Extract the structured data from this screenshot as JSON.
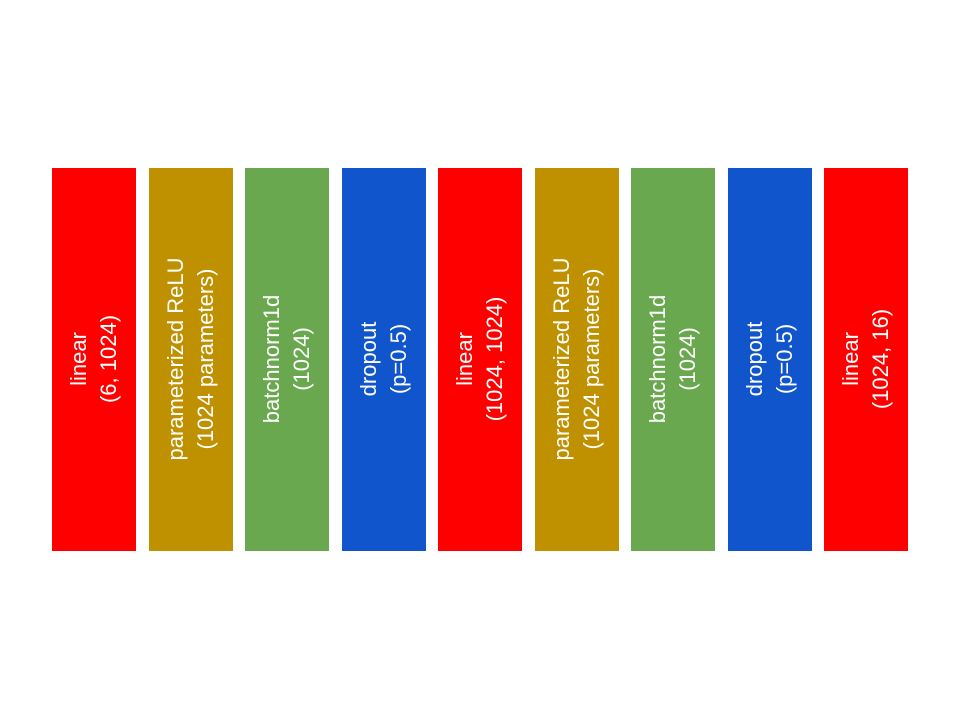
{
  "colors": {
    "linear": "#ff0000",
    "prelu": "#bf9000",
    "batchnorm": "#6aa84f",
    "dropout": "#1155cc",
    "text": "#ffffff"
  },
  "layers": [
    {
      "name": "linear",
      "args": "(6, 1024)",
      "kind": "linear"
    },
    {
      "name": "parameterized ReLU",
      "args": "(1024 parameters)",
      "kind": "prelu"
    },
    {
      "name": "batchnorm1d",
      "args": "(1024)",
      "kind": "batchnorm"
    },
    {
      "name": "dropout",
      "args": "(p=0.5)",
      "kind": "dropout"
    },
    {
      "name": "linear",
      "args": "(1024, 1024)",
      "kind": "linear"
    },
    {
      "name": "parameterized ReLU",
      "args": "(1024 parameters)",
      "kind": "prelu"
    },
    {
      "name": "batchnorm1d",
      "args": "(1024)",
      "kind": "batchnorm"
    },
    {
      "name": "dropout",
      "args": "(p=0.5)",
      "kind": "dropout"
    },
    {
      "name": "linear",
      "args": "(1024, 16)",
      "kind": "linear"
    }
  ]
}
